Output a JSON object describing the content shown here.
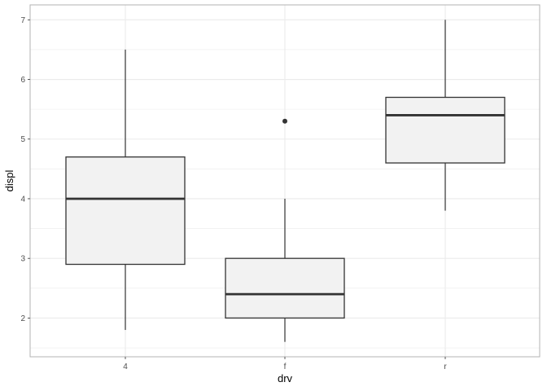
{
  "chart_data": {
    "type": "boxplot",
    "xlabel": "drv",
    "ylabel": "displ",
    "ylim": [
      1.35,
      7.25
    ],
    "y_ticks": [
      2,
      3,
      4,
      5,
      6,
      7
    ],
    "y_minor_ticks": [
      1.5,
      2.5,
      3.5,
      4.5,
      5.5,
      6.5
    ],
    "grid": true,
    "categories": [
      "4",
      "f",
      "r"
    ],
    "boxes": [
      {
        "category": "4",
        "whisker_low": 1.8,
        "q1": 2.9,
        "median": 4.0,
        "q3": 4.7,
        "whisker_high": 6.5,
        "outliers": []
      },
      {
        "category": "f",
        "whisker_low": 1.6,
        "q1": 2.0,
        "median": 2.4,
        "q3": 3.0,
        "whisker_high": 4.0,
        "outliers": [
          5.3
        ]
      },
      {
        "category": "r",
        "whisker_low": 3.8,
        "q1": 4.6,
        "median": 5.4,
        "q3": 5.7,
        "whisker_high": 7.0,
        "outliers": []
      }
    ],
    "colors": {
      "box_fill": "#f2f2f2",
      "box_line": "#333333",
      "grid": "#ebebeb",
      "panel_border": "#b3b3b3"
    }
  }
}
